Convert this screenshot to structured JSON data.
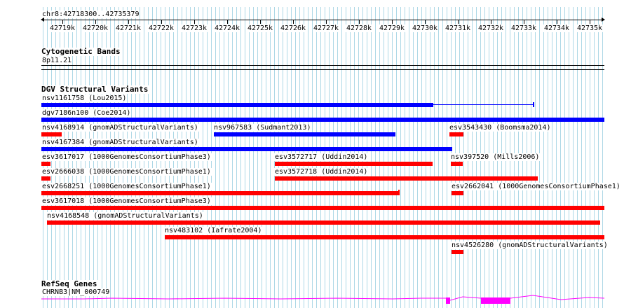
{
  "ruler": {
    "region_label": "chr8:42718300..42735379",
    "tick_labels": [
      "42719k",
      "42720k",
      "42721k",
      "42722k",
      "42723k",
      "42724k",
      "42725k",
      "42726k",
      "42727k",
      "42728k",
      "42729k",
      "42730k",
      "42731k",
      "42732k",
      "42733k",
      "42734k",
      "42735k"
    ]
  },
  "cytobands": {
    "title": "Cytogenetic Bands",
    "band": "8p11.21"
  },
  "dgv": {
    "title": "DGV Structural Variants",
    "variants": [
      {
        "label": "nsv1161758 (Lou2015)",
        "color": "#0000ff"
      },
      {
        "label": "dgv7186n100 (Coe2014)",
        "color": "#0000ff"
      },
      {
        "label": "nsv4168914 (gnomADStructuralVariants)",
        "color": "#ff0000"
      },
      {
        "label": "nsv967583 (Sudmant2013)",
        "color": "#0000ff"
      },
      {
        "label": "esv3543430 (Boomsma2014)",
        "color": "#ff0000"
      },
      {
        "label": "nsv4167384 (gnomADStructuralVariants)",
        "color": "#0000ff"
      },
      {
        "label": "esv3617017 (1000GenomesConsortiumPhase3)",
        "color": "#ff0000"
      },
      {
        "label": "esv3572717 (Uddin2014)",
        "color": "#ff0000"
      },
      {
        "label": "nsv397520 (Mills2006)",
        "color": "#ff0000"
      },
      {
        "label": "esv2666038 (1000GenomesConsortiumPhase1)",
        "color": "#ff0000"
      },
      {
        "label": "esv3572718 (Uddin2014)",
        "color": "#ff0000"
      },
      {
        "label": "esv2668251 (1000GenomesConsortiumPhase1)",
        "color": "#ff0000"
      },
      {
        "label": "esv2662041 (1000GenomesConsortiumPhase1)",
        "color": "#ff0000"
      },
      {
        "label": "esv3617018 (1000GenomesConsortiumPhase3)",
        "color": "#ff0000"
      },
      {
        "label": "nsv4168548 (gnomADStructuralVariants)",
        "color": "#ff0000"
      },
      {
        "label": "nsv483102 (Iafrate2004)",
        "color": "#ff0000"
      },
      {
        "label": "nsv4526280 (gnomADStructuralVariants)",
        "color": "#ff0000"
      }
    ]
  },
  "refseq": {
    "title": "RefSeq Genes",
    "gene_label": "CHRNB3|NM_000749",
    "gene_color": "#ff00ff"
  },
  "colors": {
    "grid_line": "#add8e6",
    "blue": "#0000ff",
    "red": "#ff0000"
  }
}
